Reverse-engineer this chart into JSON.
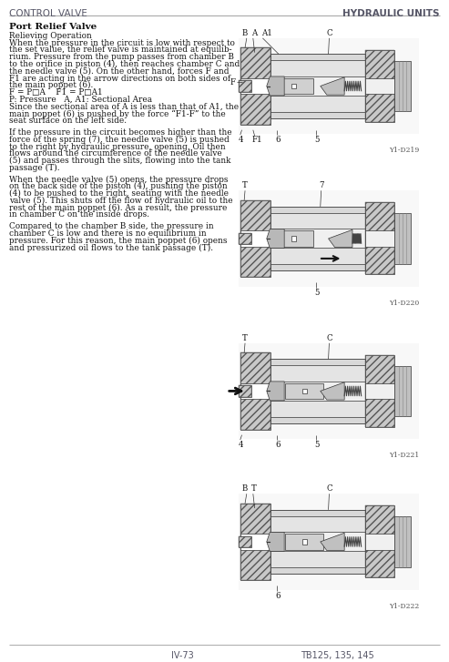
{
  "header_left": "CONTROL VALVE",
  "header_right": "HYDRAULIC UNITS",
  "title": "Port Relief Valve",
  "subtitle": "Relieving Operation",
  "para1_lines": [
    "When the pressure in the circuit is low with respect to",
    "the set value, the relief valve is maintained at equilib-",
    "rium. Pressure from the pump passes from chamber B",
    "to the orifice in piston (4), then reaches chamber C and",
    "the needle valve (5). On the other hand, forces F and",
    "F1 are acting in the arrow directions on both sides of",
    "the main poppet (6).",
    "F = P□A    F1 = P□A1",
    "P: Pressure   A, A1: Sectional Area",
    "Since the sectional area of A is less than that of A1, the",
    "main poppet (6) is pushed by the force “F1-F” to the",
    "seat surface on the left side."
  ],
  "para2_lines": [
    "If the pressure in the circuit becomes higher than the",
    "force of the spring (7), the needle valve (5) is pushed",
    "to the right by hydraulic pressure, opening. Oil then",
    "flows around the circumference of the needle valve",
    "(5) and passes through the slits, flowing into the tank",
    "passage (T)."
  ],
  "para3_lines": [
    "When the needle valve (5) opens, the pressure drops",
    "on the back side of the piston (4), pushing the piston",
    "(4) to be pushed to the right, seating with the needle",
    "valve (5). This shuts off the flow of hydraulic oil to the",
    "rest of the main poppet (6). As a result, the pressure",
    "in chamber C on the inside drops."
  ],
  "para4_lines": [
    "Compared to the chamber B side, the pressure in",
    "chamber C is low and there is no equilibrium in",
    "pressure. For this reason, the main poppet (6) opens",
    "and pressurized oil flows to the tank passage (T)."
  ],
  "footer_left": "IV-73",
  "footer_right": "TB125, 135, 145",
  "diag1_label": "Y1-D219",
  "diag2_label": "Y1-D220",
  "diag3_label": "Y1-D221",
  "diag4_label": "Y1-D222",
  "bg_color": "#ffffff",
  "header_color": "#555566",
  "text_color": "#000000",
  "diag_line_color": "#333333",
  "diag_hatch_color": "#666666",
  "diag_bg": "#f5f5f5",
  "diag_body_color": "#e0e0e0",
  "diag_dark": "#888888",
  "diag_white": "#ffffff"
}
